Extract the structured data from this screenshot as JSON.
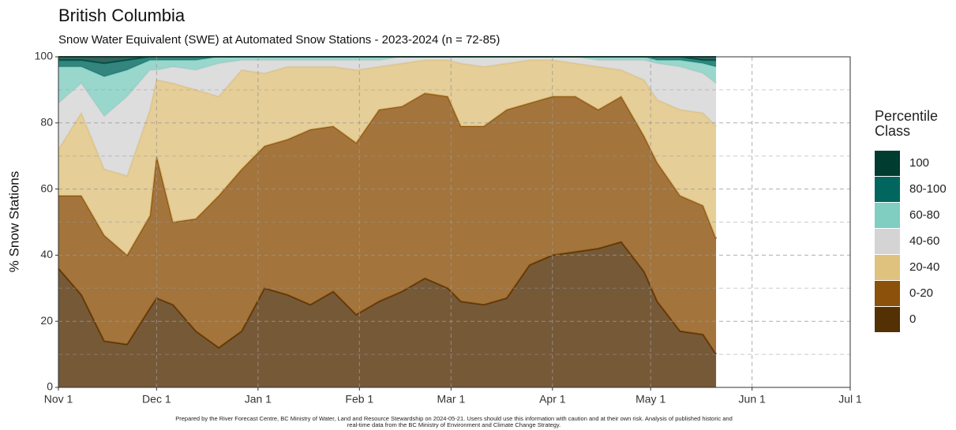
{
  "chart_data": {
    "type": "stacked_area",
    "title": "British Columbia",
    "subtitle": "Snow Water Equivalent (SWE) at Automated Snow Stations - 2023-2024 (n = 72-85)",
    "y_label": "% Snow Stations",
    "legend_title": "Percentile Class",
    "footnote": "Prepared by the River Forecast Centre, BC Ministry of Water, Land and Resource Stewardship on 2024-05-21. Users should use this information with caution and at their own risk. Analysis of published historic and real-time data from the BC Ministry of Environment and Climate Change Strategy.",
    "x": [
      "Nov 1",
      "Nov 8",
      "Nov 15",
      "Nov 22",
      "Nov 29",
      "Dec 1",
      "Dec 6",
      "Dec 13",
      "Dec 20",
      "Dec 27",
      "Jan 3",
      "Jan 10",
      "Jan 17",
      "Jan 24",
      "Jan 31",
      "Feb 7",
      "Feb 14",
      "Feb 21",
      "Feb 28",
      "Mar 4",
      "Mar 11",
      "Mar 18",
      "Mar 25",
      "Apr 1",
      "Apr 8",
      "Apr 15",
      "Apr 22",
      "Apr 29",
      "May 3",
      "May 10",
      "May 17",
      "May 21"
    ],
    "xlim": [
      "Nov 1",
      "Jul 1"
    ],
    "xticks": [
      "Nov 1",
      "Dec 1",
      "Jan 1",
      "Feb 1",
      "Mar 1",
      "Apr 1",
      "May 1",
      "Jun 1",
      "Jul 1"
    ],
    "ylim": [
      0,
      100
    ],
    "yticks": [
      0,
      20,
      40,
      60,
      80,
      100
    ],
    "y_minor_ticks": [
      10,
      30,
      50,
      70,
      90
    ],
    "grid": true,
    "legend": "right",
    "series": [
      {
        "name": "0",
        "color": "#543005",
        "values": [
          36,
          28,
          14,
          13,
          24,
          27,
          25,
          17,
          12,
          17,
          30,
          28,
          25,
          29,
          22,
          26,
          29,
          33,
          30,
          26,
          25,
          27,
          37,
          40,
          41,
          42,
          44,
          35,
          26,
          17,
          16,
          10
        ]
      },
      {
        "name": "0-20",
        "color": "#8c510a",
        "values": [
          22,
          30,
          32,
          27,
          28,
          43,
          25,
          34,
          46,
          49,
          43,
          47,
          53,
          50,
          52,
          58,
          56,
          56,
          58,
          53,
          54,
          57,
          49,
          48,
          47,
          42,
          44,
          41,
          42,
          41,
          39,
          35
        ]
      },
      {
        "name": "20-40",
        "color": "#dfc27d",
        "values": [
          14,
          25,
          20,
          24,
          32,
          23,
          42,
          39,
          30,
          30,
          22,
          22,
          19,
          18,
          22,
          13,
          13,
          10,
          11,
          19,
          18,
          14,
          13,
          11,
          10,
          13,
          8,
          17,
          19,
          26,
          28,
          34
        ]
      },
      {
        "name": "40-60",
        "color": "#d4d4d4",
        "values": [
          14,
          9,
          16,
          24,
          12,
          3,
          5,
          6,
          10,
          3,
          4,
          2,
          2,
          2,
          3,
          2,
          2,
          1,
          1,
          2,
          3,
          2,
          1,
          1,
          2,
          2,
          3,
          6,
          11,
          13,
          12,
          13
        ]
      },
      {
        "name": "60-80",
        "color": "#80cdc1",
        "values": [
          11,
          5,
          12,
          8,
          3,
          3,
          2,
          3,
          2,
          1,
          1,
          1,
          1,
          1,
          1,
          1,
          0,
          0,
          0,
          0,
          0,
          0,
          0,
          0,
          0,
          1,
          1,
          1,
          1,
          2,
          3,
          5
        ]
      },
      {
        "name": "80-100",
        "color": "#01665e",
        "values": [
          2,
          2,
          4,
          3,
          1,
          1,
          1,
          1,
          0,
          0,
          0,
          0,
          0,
          0,
          0,
          0,
          0,
          0,
          0,
          0,
          0,
          0,
          0,
          0,
          0,
          0,
          0,
          0,
          1,
          1,
          1,
          2
        ]
      },
      {
        "name": "100",
        "color": "#003c30",
        "values": [
          1,
          1,
          2,
          1,
          0,
          0,
          0,
          0,
          0,
          0,
          0,
          0,
          0,
          0,
          0,
          0,
          0,
          0,
          0,
          0,
          0,
          0,
          0,
          0,
          0,
          0,
          0,
          0,
          0,
          0,
          1,
          1
        ]
      }
    ]
  }
}
